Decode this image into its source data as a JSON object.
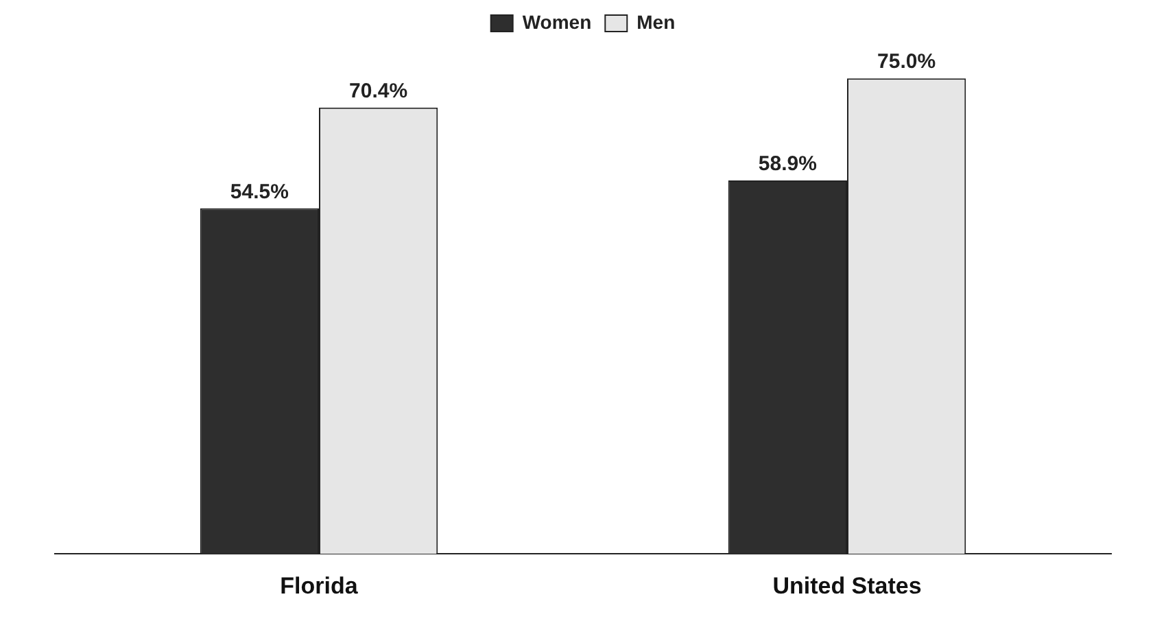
{
  "chart_data": {
    "type": "bar",
    "categories": [
      "Florida",
      "United States"
    ],
    "series": [
      {
        "name": "Women",
        "color": "#2e2e2e",
        "values": [
          54.5,
          58.9
        ],
        "value_labels": [
          "54.5%",
          "58.9%"
        ]
      },
      {
        "name": "Men",
        "color": "#e6e6e6",
        "values": [
          70.4,
          75.0
        ],
        "value_labels": [
          "70.4%",
          "75.0%"
        ]
      }
    ],
    "legend": "top",
    "grid": false
  }
}
